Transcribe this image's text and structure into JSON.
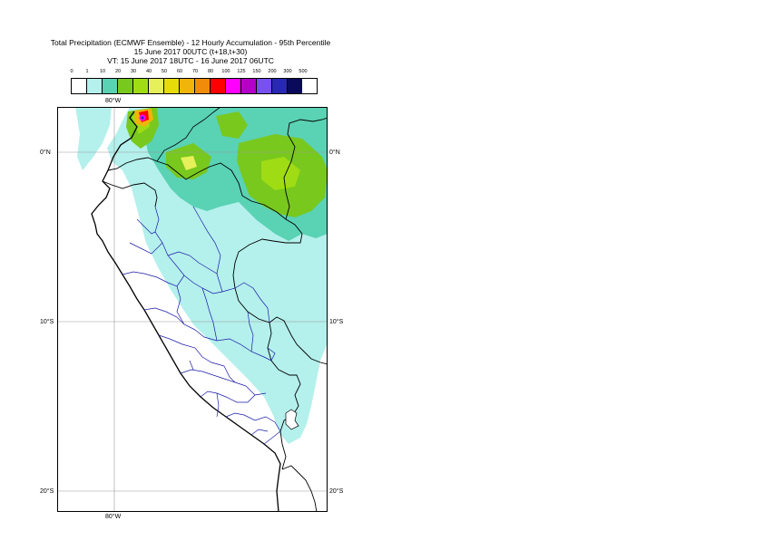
{
  "title": {
    "line1": "Total Precipitation (ECMWF Ensemble) - 12 Hourly Accumulation - 95th Percentile",
    "line2": "15 June 2017 00UTC (t+18,t+30)",
    "line3": "VT: 15 June 2017 18UTC - 16 June 2017 06UTC"
  },
  "legend": {
    "labels": [
      "0",
      "1",
      "10",
      "20",
      "30",
      "40",
      "50",
      "60",
      "70",
      "80",
      "100",
      "125",
      "150",
      "200",
      "300",
      "500"
    ],
    "colors": [
      "#ffffff",
      "#b4f0ec",
      "#5ad2b4",
      "#78c81e",
      "#a0dc14",
      "#e6f05a",
      "#e6dc0a",
      "#f0b40a",
      "#f08c0a",
      "#ff0000",
      "#ff00ff",
      "#b400c8",
      "#7850f0",
      "#2828b4",
      "#0a0a5a"
    ]
  },
  "axes": {
    "top_lon": "80°W",
    "bottom_lon": "80°W",
    "lat_labels": [
      "0°N",
      "10°S",
      "20°S"
    ]
  }
}
